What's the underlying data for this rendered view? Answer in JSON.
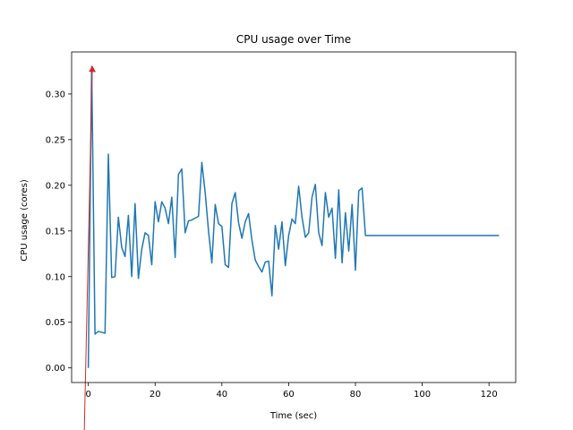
{
  "chart_data": {
    "type": "line",
    "title": "CPU usage over Time",
    "xlabel": "Time (sec)",
    "ylabel": "CPU usage (cores)",
    "xlim": [
      -5,
      128
    ],
    "ylim": [
      -0.016,
      0.346
    ],
    "xticks": [
      0,
      20,
      40,
      60,
      80,
      100,
      120
    ],
    "yticks": [
      0.0,
      0.05,
      0.1,
      0.15,
      0.2,
      0.25,
      0.3
    ],
    "ytick_labels": [
      "0.00",
      "0.05",
      "0.10",
      "0.15",
      "0.20",
      "0.25",
      "0.30"
    ],
    "grid": false,
    "series": [
      {
        "color": "#1f77b4",
        "x": [
          0,
          1,
          2,
          3,
          4,
          5,
          6,
          7,
          8,
          9,
          10,
          11,
          12,
          13,
          14,
          15,
          16,
          17,
          18,
          19,
          20,
          21,
          22,
          23,
          24,
          25,
          26,
          27,
          28,
          29,
          30,
          31,
          32,
          33,
          34,
          35,
          36,
          37,
          38,
          39,
          40,
          41,
          42,
          43,
          44,
          45,
          46,
          47,
          48,
          49,
          50,
          51,
          52,
          53,
          54,
          55,
          56,
          57,
          58,
          59,
          60,
          61,
          62,
          63,
          64,
          65,
          66,
          67,
          68,
          69,
          70,
          71,
          72,
          73,
          74,
          75,
          76,
          77,
          78,
          79,
          80,
          81,
          82,
          83,
          84,
          85,
          86,
          87,
          88,
          89,
          90,
          91,
          92,
          93,
          94,
          95,
          96,
          97,
          98,
          99,
          100,
          101,
          102,
          103,
          104,
          105,
          106,
          107,
          108,
          109,
          110,
          111,
          112,
          113,
          114,
          115,
          116,
          117,
          118,
          119,
          120,
          121,
          122,
          123
        ],
        "y": [
          0.0,
          0.33,
          0.037,
          0.04,
          0.039,
          0.038,
          0.234,
          0.099,
          0.1,
          0.165,
          0.132,
          0.122,
          0.167,
          0.1,
          0.18,
          0.098,
          0.13,
          0.148,
          0.145,
          0.113,
          0.182,
          0.16,
          0.182,
          0.175,
          0.158,
          0.187,
          0.121,
          0.212,
          0.218,
          0.148,
          0.161,
          0.162,
          0.164,
          0.166,
          0.225,
          0.192,
          0.15,
          0.115,
          0.179,
          0.158,
          0.155,
          0.113,
          0.11,
          0.18,
          0.192,
          0.159,
          0.142,
          0.16,
          0.169,
          0.14,
          0.118,
          0.111,
          0.105,
          0.116,
          0.117,
          0.079,
          0.156,
          0.13,
          0.16,
          0.112,
          0.145,
          0.163,
          0.158,
          0.199,
          0.165,
          0.143,
          0.148,
          0.187,
          0.201,
          0.148,
          0.134,
          0.192,
          0.165,
          0.175,
          0.12,
          0.195,
          0.115,
          0.17,
          0.128,
          0.179,
          0.107,
          0.194,
          0.197,
          0.145,
          0.145,
          0.145,
          0.145,
          0.145,
          0.145,
          0.145,
          0.145,
          0.145,
          0.145,
          0.145,
          0.145,
          0.145,
          0.145,
          0.145,
          0.145,
          0.145,
          0.145,
          0.145,
          0.145,
          0.145,
          0.145,
          0.145,
          0.145,
          0.145,
          0.145,
          0.145,
          0.145,
          0.145,
          0.145,
          0.145,
          0.145,
          0.145,
          0.145,
          0.145,
          0.145,
          0.145,
          0.145,
          0.145,
          0.145,
          0.145
        ]
      }
    ],
    "annotation": {
      "type": "arrow",
      "color": "#d62728",
      "from": [
        -1.2,
        -0.068
      ],
      "to": [
        1.2,
        0.33
      ]
    }
  }
}
